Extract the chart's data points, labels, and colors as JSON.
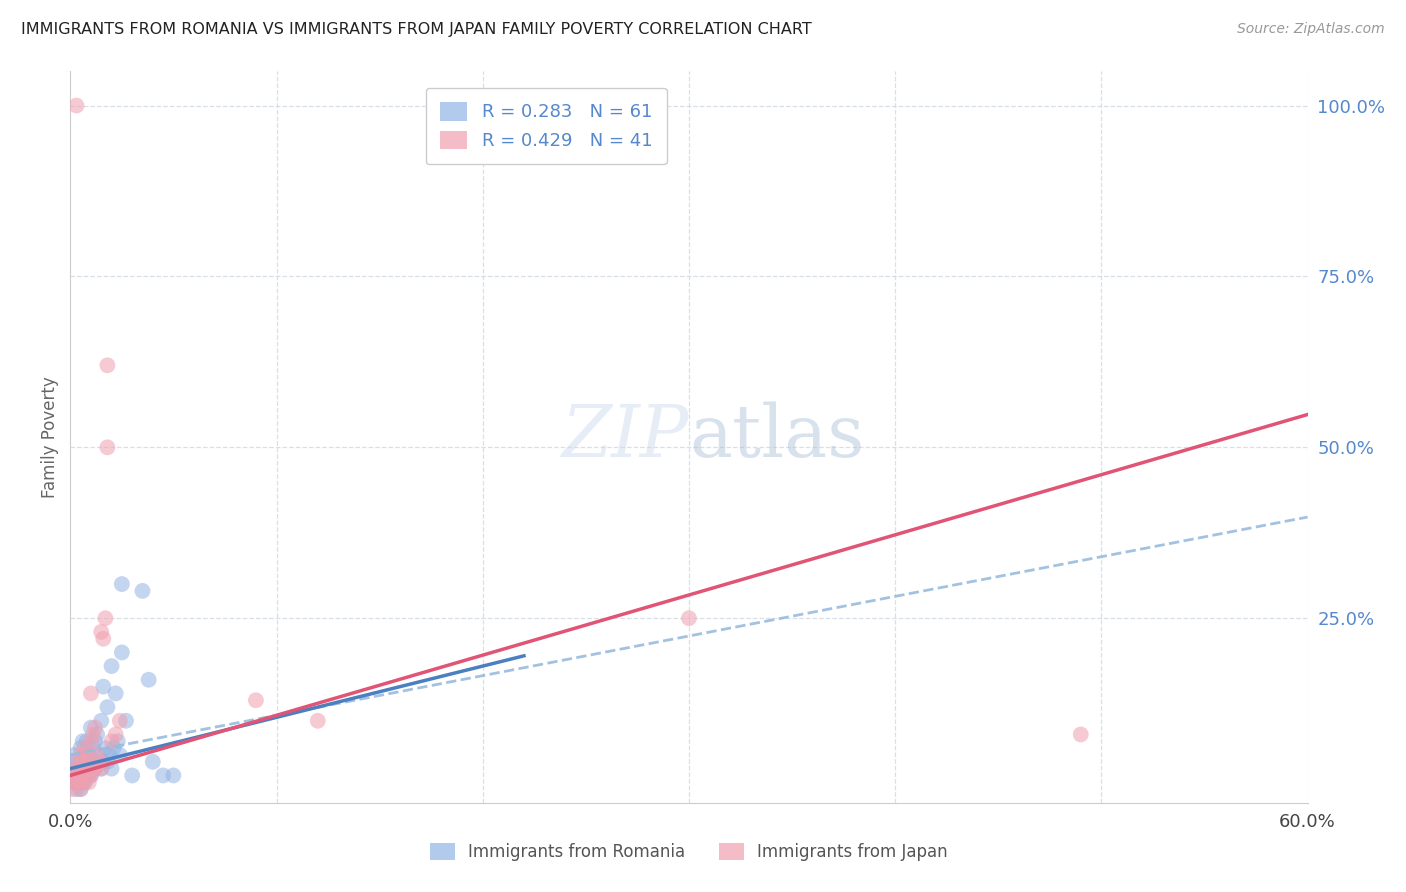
{
  "title": "IMMIGRANTS FROM ROMANIA VS IMMIGRANTS FROM JAPAN FAMILY POVERTY CORRELATION CHART",
  "source": "Source: ZipAtlas.com",
  "ylabel": "Family Poverty",
  "xlim": [
    0.0,
    0.6
  ],
  "ylim": [
    -0.02,
    1.05
  ],
  "romania_color": "#92b4e3",
  "japan_color": "#f0a0b0",
  "romania_line_color": "#4a7fc1",
  "japan_line_color": "#e05575",
  "dashed_line_color": "#99bbdd",
  "romania_R": 0.283,
  "romania_N": 61,
  "japan_R": 0.429,
  "japan_N": 41,
  "romania_x": [
    0.001,
    0.001,
    0.002,
    0.002,
    0.002,
    0.003,
    0.003,
    0.003,
    0.003,
    0.004,
    0.004,
    0.004,
    0.005,
    0.005,
    0.005,
    0.005,
    0.006,
    0.006,
    0.006,
    0.006,
    0.007,
    0.007,
    0.007,
    0.008,
    0.008,
    0.008,
    0.009,
    0.009,
    0.01,
    0.01,
    0.01,
    0.011,
    0.011,
    0.012,
    0.012,
    0.013,
    0.013,
    0.014,
    0.015,
    0.015,
    0.016,
    0.016,
    0.017,
    0.018,
    0.018,
    0.019,
    0.02,
    0.02,
    0.021,
    0.022,
    0.023,
    0.024,
    0.025,
    0.025,
    0.027,
    0.03,
    0.035,
    0.038,
    0.04,
    0.045,
    0.05
  ],
  "romania_y": [
    0.01,
    0.02,
    0.01,
    0.03,
    0.05,
    0.0,
    0.01,
    0.02,
    0.04,
    0.01,
    0.02,
    0.03,
    0.0,
    0.01,
    0.02,
    0.06,
    0.01,
    0.02,
    0.03,
    0.07,
    0.01,
    0.03,
    0.05,
    0.02,
    0.04,
    0.07,
    0.02,
    0.05,
    0.02,
    0.04,
    0.09,
    0.03,
    0.06,
    0.03,
    0.07,
    0.04,
    0.08,
    0.05,
    0.03,
    0.1,
    0.04,
    0.15,
    0.06,
    0.04,
    0.12,
    0.05,
    0.03,
    0.18,
    0.06,
    0.14,
    0.07,
    0.05,
    0.3,
    0.2,
    0.1,
    0.02,
    0.29,
    0.16,
    0.04,
    0.02,
    0.02
  ],
  "japan_x": [
    0.001,
    0.002,
    0.002,
    0.003,
    0.003,
    0.004,
    0.004,
    0.005,
    0.005,
    0.005,
    0.006,
    0.006,
    0.007,
    0.007,
    0.008,
    0.008,
    0.009,
    0.009,
    0.01,
    0.01,
    0.01,
    0.011,
    0.011,
    0.012,
    0.012,
    0.013,
    0.014,
    0.015,
    0.015,
    0.016,
    0.017,
    0.018,
    0.018,
    0.02,
    0.022,
    0.024,
    0.09,
    0.12,
    0.3,
    0.49,
    0.003
  ],
  "japan_y": [
    0.0,
    0.01,
    0.02,
    0.01,
    0.03,
    0.02,
    0.04,
    0.0,
    0.01,
    0.05,
    0.02,
    0.04,
    0.01,
    0.06,
    0.02,
    0.05,
    0.01,
    0.04,
    0.02,
    0.07,
    0.14,
    0.03,
    0.08,
    0.03,
    0.09,
    0.05,
    0.04,
    0.03,
    0.23,
    0.22,
    0.25,
    0.5,
    0.62,
    0.07,
    0.08,
    0.1,
    0.13,
    0.1,
    0.25,
    0.08,
    1.0
  ],
  "japan_trendline": [
    [
      0.0,
      0.6
    ],
    [
      0.02,
      0.55
    ]
  ],
  "romania_trendline": [
    [
      0.0,
      0.2
    ],
    [
      0.02,
      0.2
    ]
  ],
  "dashed_trendline": [
    [
      0.0,
      0.6
    ],
    [
      0.005,
      0.4
    ]
  ],
  "watermark_zip": "ZIP",
  "watermark_atlas": "atlas",
  "background_color": "#ffffff",
  "grid_color": "#d0d8e4",
  "title_color": "#222222",
  "axis_label_color": "#666666",
  "right_axis_color": "#5588cc",
  "tick_color": "#aaaaaa",
  "legend_romania_label": "R = 0.283   N = 61",
  "legend_japan_label": "R = 0.429   N = 41"
}
